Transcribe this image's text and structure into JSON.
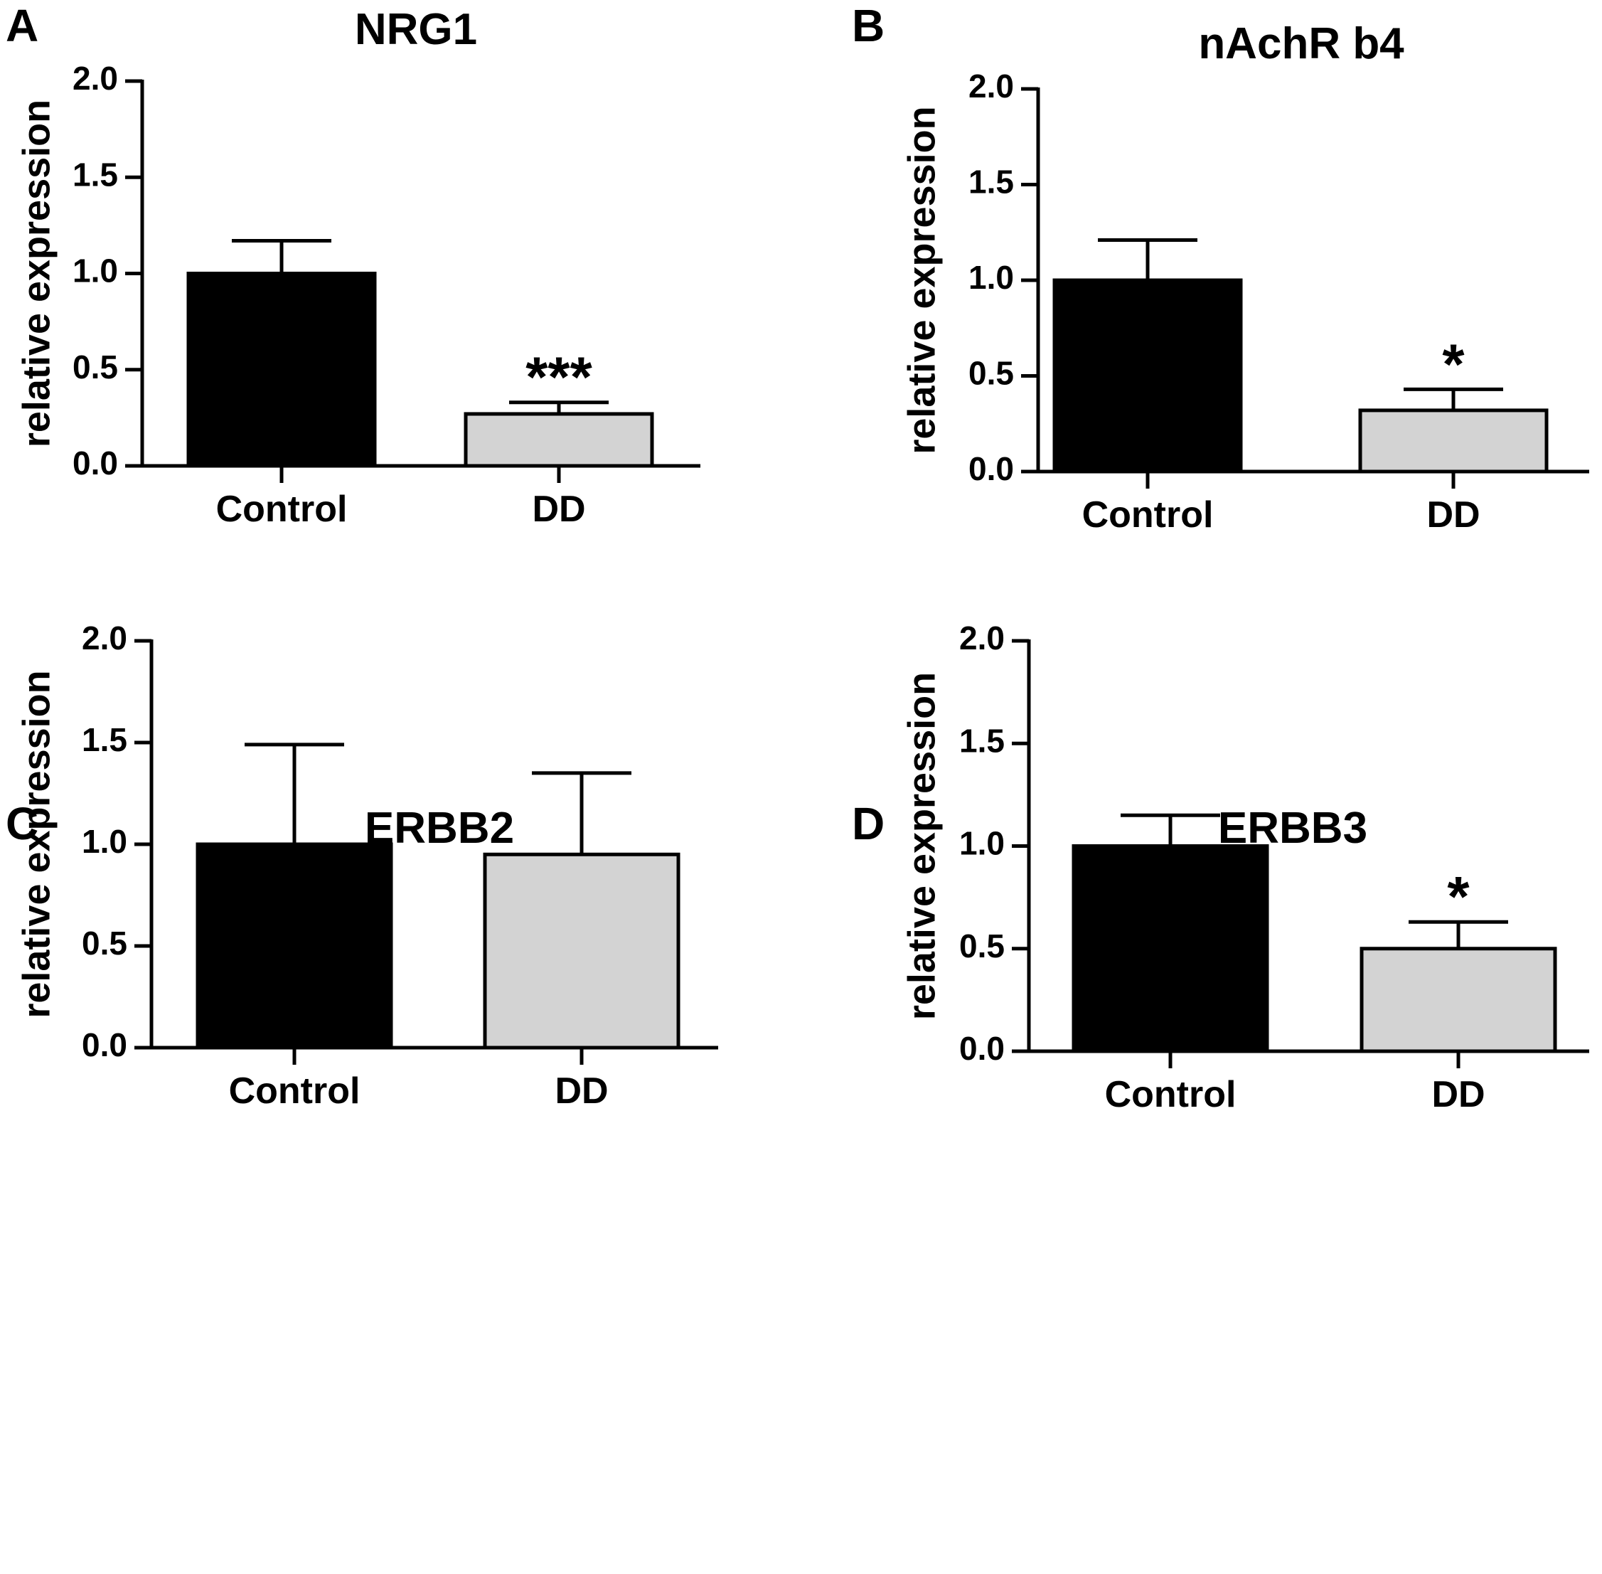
{
  "chart_data": [
    {
      "type": "bar",
      "panel_label": "A",
      "title": "NRG1",
      "ylabel": "relative expression",
      "categories": [
        "Control",
        "DD"
      ],
      "values": [
        1.0,
        0.27
      ],
      "errors": [
        0.17,
        0.06
      ],
      "annotations": [
        "",
        "***"
      ],
      "bar_colors": [
        "#000000",
        "#d3d3d3"
      ],
      "ylim": [
        0,
        2.0
      ],
      "yticks": [
        "0.0",
        "0.5",
        "1.0",
        "1.5",
        "2.0"
      ]
    },
    {
      "type": "bar",
      "panel_label": "B",
      "title": "nAchR b4",
      "ylabel": "relative expression",
      "categories": [
        "Control",
        "DD"
      ],
      "values": [
        1.0,
        0.32
      ],
      "errors": [
        0.21,
        0.11
      ],
      "annotations": [
        "",
        "*"
      ],
      "bar_colors": [
        "#000000",
        "#d3d3d3"
      ],
      "ylim": [
        0,
        2.0
      ],
      "yticks": [
        "0.0",
        "0.5",
        "1.0",
        "1.5",
        "2.0"
      ]
    },
    {
      "type": "bar",
      "panel_label": "C",
      "title": "ERBB2",
      "ylabel": "relative expression",
      "categories": [
        "Control",
        "DD"
      ],
      "values": [
        1.0,
        0.95
      ],
      "errors": [
        0.49,
        0.4
      ],
      "annotations": [
        "",
        ""
      ],
      "bar_colors": [
        "#000000",
        "#d3d3d3"
      ],
      "ylim": [
        0,
        2.0
      ],
      "yticks": [
        "0.0",
        "0.5",
        "1.0",
        "1.5",
        "2.0"
      ]
    },
    {
      "type": "bar",
      "panel_label": "D",
      "title": "ERBB3",
      "ylabel": "relative expression",
      "categories": [
        "Control",
        "DD"
      ],
      "values": [
        1.0,
        0.5
      ],
      "errors": [
        0.15,
        0.13
      ],
      "annotations": [
        "",
        "*"
      ],
      "bar_colors": [
        "#000000",
        "#d3d3d3"
      ],
      "ylim": [
        0,
        2.0
      ],
      "yticks": [
        "0.0",
        "0.5",
        "1.0",
        "1.5",
        "2.0"
      ]
    }
  ]
}
